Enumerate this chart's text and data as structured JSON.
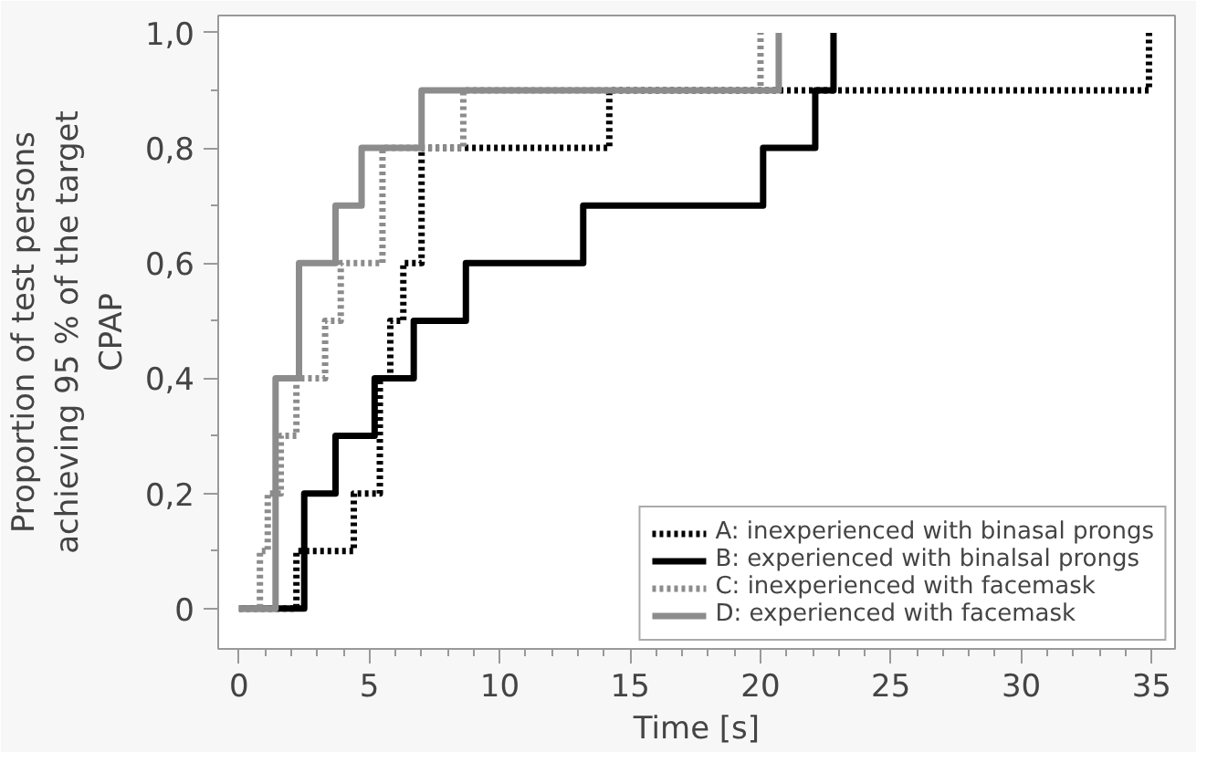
{
  "chart_data": {
    "type": "step",
    "xlabel": "Time [s]",
    "ylabel": "Proportion of test persons achieving 95 % of the target CPAP",
    "xlim": [
      -0.8,
      35.9
    ],
    "ylim": [
      -0.07,
      1.03
    ],
    "xticks": [
      0,
      5,
      10,
      15,
      20,
      25,
      30,
      35
    ],
    "yticks": [
      {
        "value": 0,
        "label": "0"
      },
      {
        "value": 0.2,
        "label": "0,2"
      },
      {
        "value": 0.4,
        "label": "0,4"
      },
      {
        "value": 0.6,
        "label": "0,6"
      },
      {
        "value": 0.8,
        "label": "0,8"
      },
      {
        "value": 1.0,
        "label": "1,0"
      }
    ],
    "grid": false,
    "legend": "bottom right",
    "series": [
      {
        "name": "A: inexperienced with binasal prongs",
        "color": "#000000",
        "line_style": "dotted",
        "x": [
          0,
          2.2,
          4.4,
          5.4,
          5.8,
          6.3,
          7.0,
          14.2,
          34.9
        ],
        "values": [
          0,
          0.1,
          0.2,
          0.4,
          0.5,
          0.6,
          0.8,
          0.9,
          1.0
        ]
      },
      {
        "name": "B: experienced with binalsal prongs",
        "color": "#000000",
        "line_style": "solid",
        "x": [
          0,
          2.5,
          3.7,
          5.2,
          6.7,
          8.7,
          13.2,
          20.1,
          22.1,
          22.8
        ],
        "values": [
          0,
          0.2,
          0.3,
          0.4,
          0.5,
          0.6,
          0.7,
          0.8,
          0.9,
          1.0
        ]
      },
      {
        "name": "C: inexperienced with facemask",
        "color": "#8c8c8c",
        "line_style": "dotted",
        "x": [
          0,
          0.8,
          1.1,
          1.6,
          2.2,
          3.3,
          3.9,
          5.5,
          8.6,
          20.0
        ],
        "values": [
          0,
          0.1,
          0.2,
          0.3,
          0.4,
          0.5,
          0.6,
          0.8,
          0.9,
          1.0
        ]
      },
      {
        "name": "D: experienced with facemask",
        "color": "#8c8c8c",
        "line_style": "solid",
        "x": [
          0,
          1.4,
          2.3,
          3.7,
          4.7,
          7.0,
          20.7
        ],
        "values": [
          0,
          0.4,
          0.6,
          0.7,
          0.8,
          0.9,
          1.0
        ]
      }
    ]
  }
}
